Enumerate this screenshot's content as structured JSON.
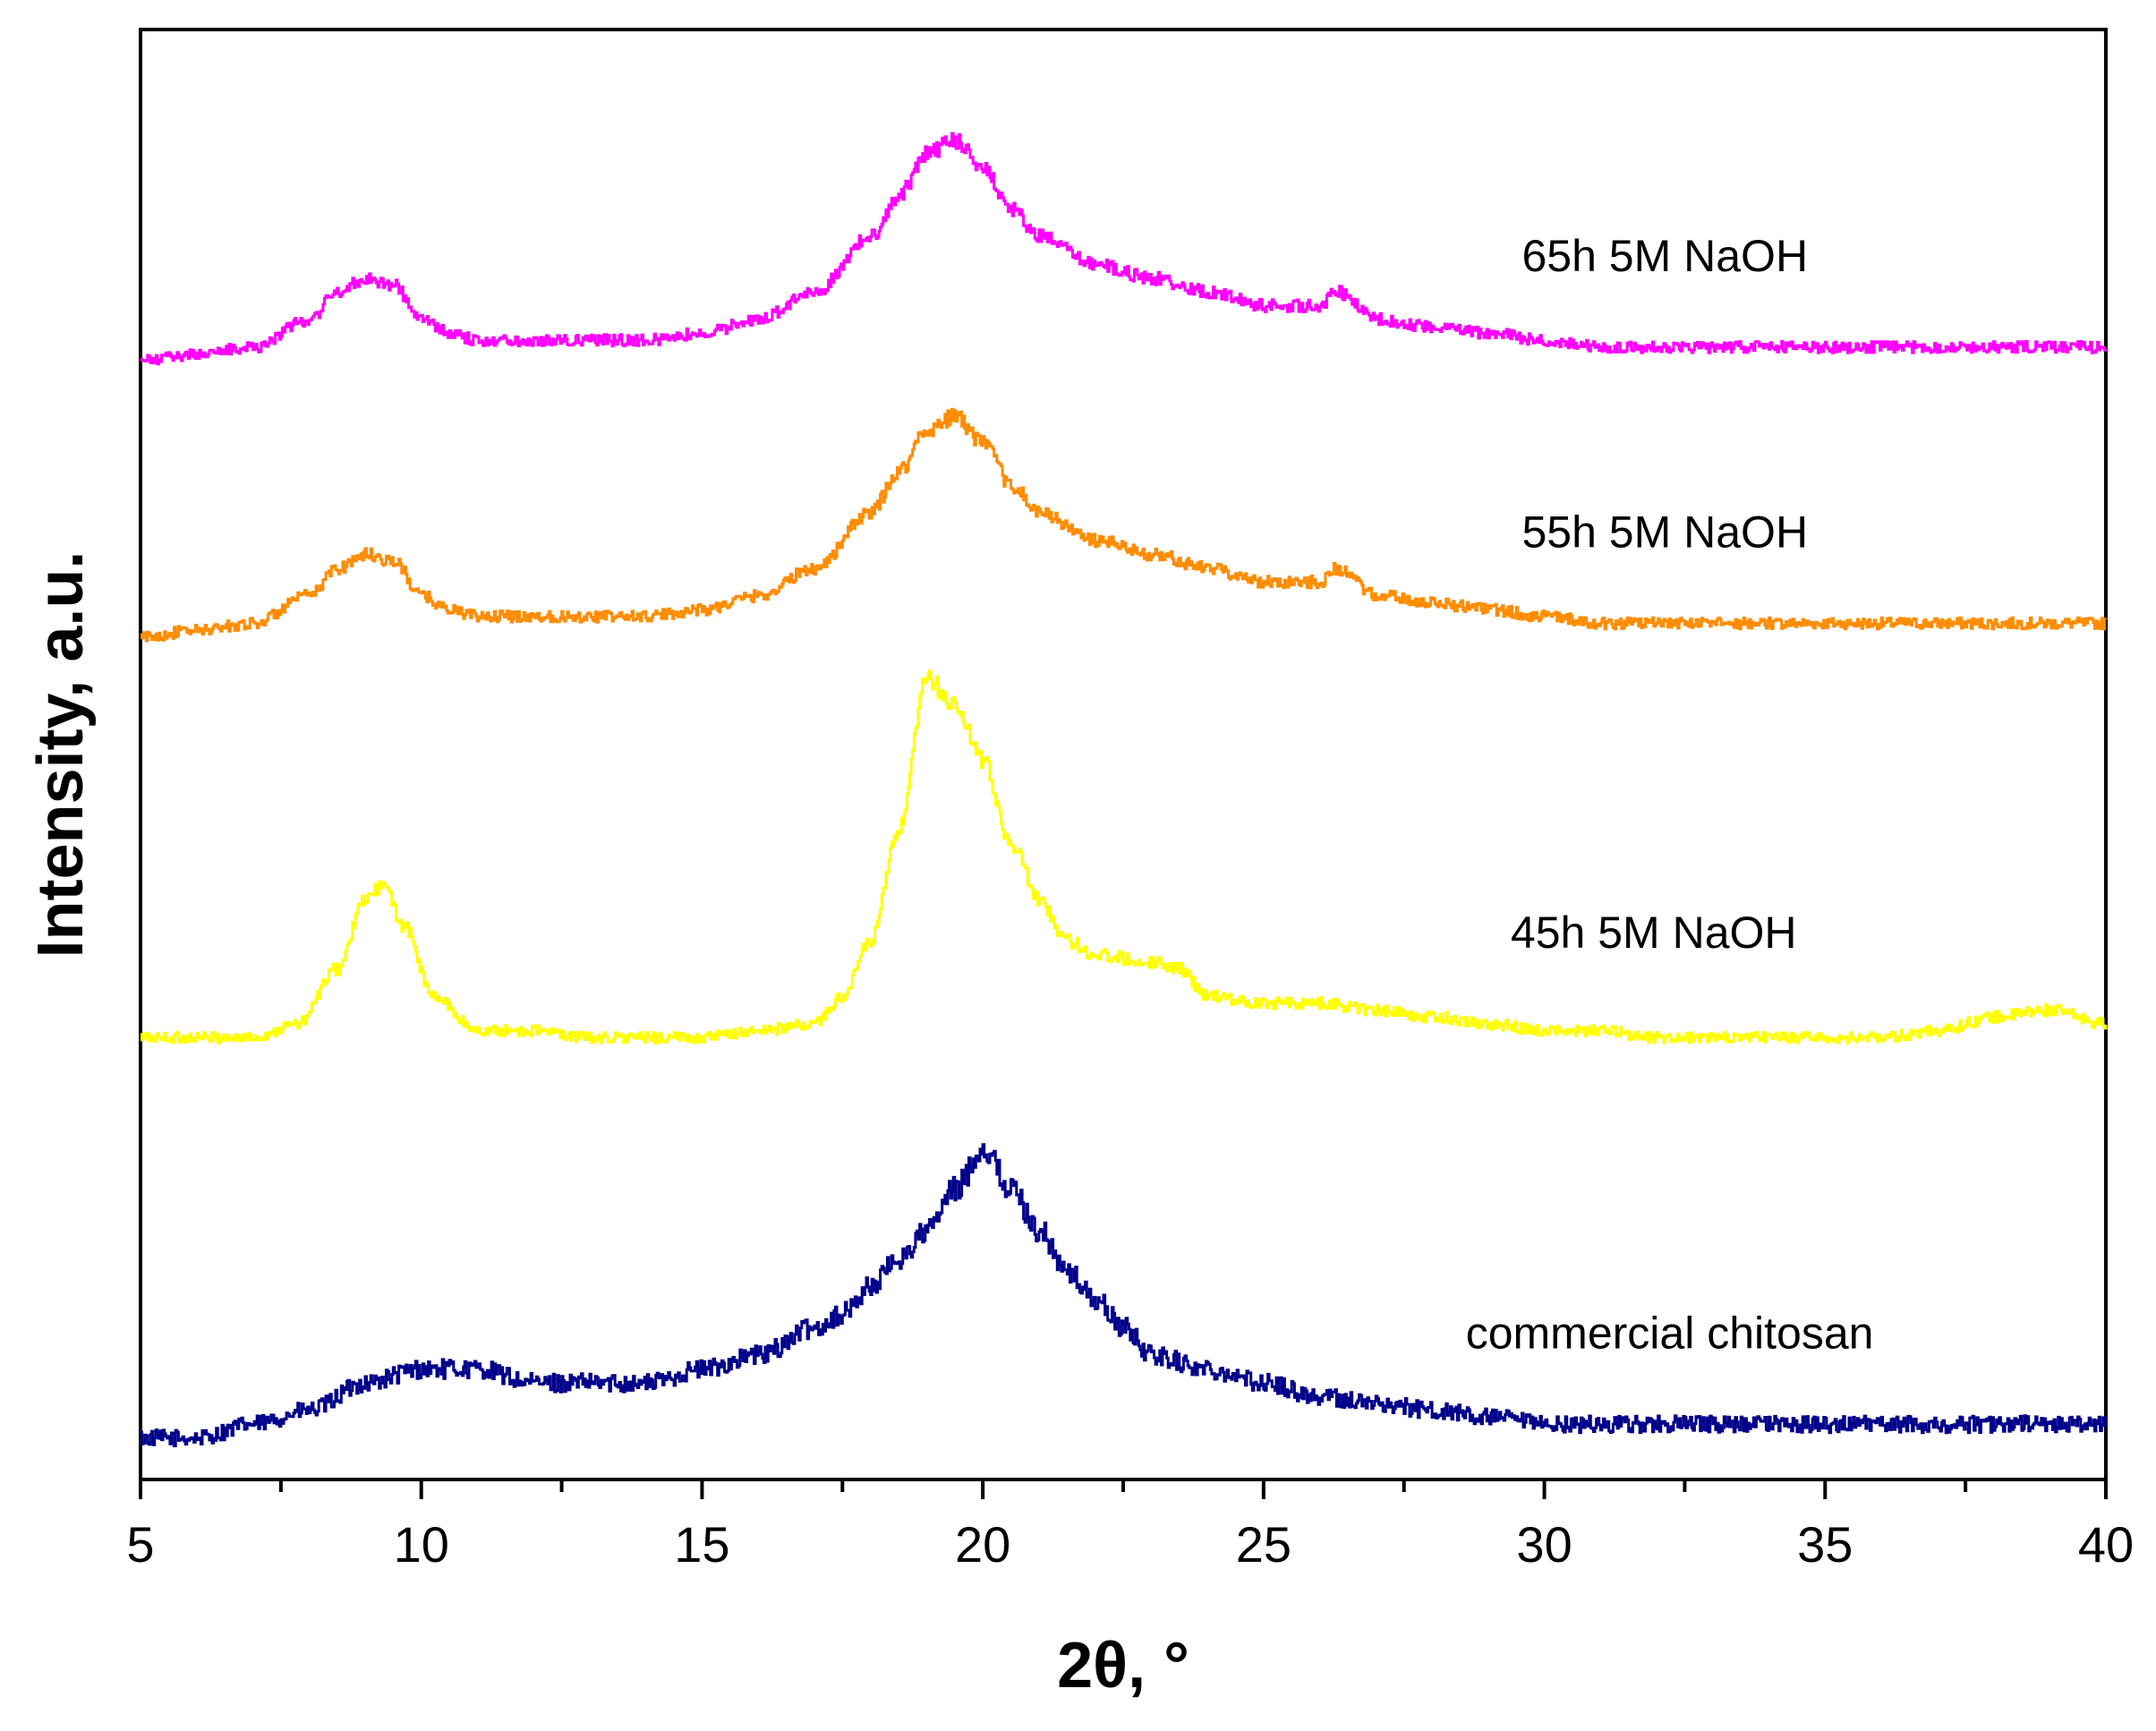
{
  "chart_data": {
    "type": "line",
    "title": "",
    "xlabel": "2θ, °",
    "ylabel": "Intensity, a.u.",
    "xlim": [
      5,
      40
    ],
    "ylim": [
      0,
      105
    ],
    "x_ticks": [
      "5",
      "10",
      "15",
      "20",
      "25",
      "30",
      "35",
      "40"
    ],
    "x_tick_values": [
      5,
      10,
      15,
      20,
      25,
      30,
      35,
      40
    ],
    "grid": false,
    "series": [
      {
        "name": "commercial chitosan",
        "color": "#00008b",
        "x": [
          5,
          6,
          7,
          8,
          9,
          10,
          11,
          12,
          13,
          14,
          15,
          16,
          17,
          17.5,
          18,
          18.5,
          19,
          19.5,
          20,
          20.5,
          21,
          21.5,
          22,
          22.5,
          23,
          24,
          25,
          26,
          27,
          28,
          29,
          30,
          31,
          32,
          33,
          34,
          35,
          36,
          37,
          38,
          39,
          40
        ],
        "values": [
          3,
          3,
          4,
          5,
          7,
          8,
          8,
          7,
          7,
          7,
          8,
          9,
          11,
          12,
          14,
          16,
          18,
          21,
          24,
          21,
          18,
          15,
          13,
          11,
          9,
          8,
          7,
          6,
          5.5,
          5,
          4.5,
          4,
          4,
          4,
          4,
          4,
          4,
          4,
          4,
          4,
          4,
          4
        ],
        "noise": 0.6
      },
      {
        "name": "45h 5M NaOH",
        "color": "#ffff00",
        "x": [
          5,
          6,
          7,
          7.8,
          8.5,
          9,
          9.3,
          9.7,
          10.2,
          11,
          12,
          13,
          14,
          15,
          16,
          17,
          17.5,
          18,
          18.5,
          19,
          19.5,
          20,
          20.5,
          21,
          21.5,
          22,
          23,
          23.5,
          24,
          25,
          26,
          27,
          28,
          29,
          30,
          31,
          32,
          33,
          34,
          35,
          36,
          37,
          38,
          39,
          40
        ],
        "values": [
          32,
          32,
          32,
          33,
          37,
          42,
          43,
          40,
          35,
          32.5,
          32.5,
          32,
          32,
          32,
          32.5,
          33,
          35,
          39,
          47,
          58,
          56,
          52,
          46,
          42,
          39,
          38,
          37.5,
          37,
          35,
          34.5,
          34.5,
          34,
          33.5,
          33,
          32.5,
          32.5,
          32,
          32,
          32,
          32,
          32,
          32.5,
          33.5,
          34,
          33
        ],
        "noise": 0.4
      },
      {
        "name": "55h 5M NaOH",
        "color": "#ff8c00",
        "x": [
          5,
          6,
          7,
          8,
          8.5,
          9,
          9.5,
          10,
          10.5,
          11,
          12,
          13,
          14,
          15,
          16,
          17,
          18,
          18.5,
          19,
          19.5,
          20,
          20.5,
          21,
          22,
          23,
          24,
          25,
          26,
          26.3,
          27,
          28,
          29,
          30,
          31,
          32,
          33,
          34,
          35,
          36,
          37,
          38,
          39,
          40
        ],
        "values": [
          61,
          61.5,
          62,
          64,
          66,
          67,
          66.5,
          64,
          63,
          62.5,
          62.5,
          62.5,
          62.5,
          63,
          64,
          66,
          70,
          73,
          76,
          77,
          75,
          72,
          70,
          68,
          67,
          66,
          65,
          65,
          66,
          64,
          63.5,
          63,
          62.5,
          62,
          62,
          62,
          62,
          62,
          62,
          62,
          62,
          62,
          62
        ],
        "noise": 0.4
      },
      {
        "name": "65h 5M NaOH",
        "color": "#ff00ff",
        "x": [
          5,
          6,
          7,
          8,
          8.5,
          9,
          9.5,
          10,
          10.5,
          11,
          12,
          13,
          14,
          15,
          16,
          17,
          18,
          18.5,
          19,
          19.5,
          20,
          20.5,
          21,
          22,
          23,
          24,
          25,
          26,
          26.3,
          27,
          28,
          29,
          30,
          31,
          32,
          33,
          34,
          35,
          36,
          37,
          38,
          39,
          40
        ],
        "values": [
          81,
          81.5,
          82,
          84,
          86,
          87,
          86.5,
          84,
          83,
          82.5,
          82.5,
          82.5,
          82.5,
          83,
          84,
          86,
          90,
          93,
          96,
          97,
          95,
          92,
          90,
          88,
          87,
          86,
          85,
          85,
          86,
          84,
          83.5,
          83,
          82.5,
          82,
          82,
          82,
          82,
          82,
          82,
          82,
          82,
          82,
          82
        ],
        "noise": 0.4
      }
    ],
    "annotations": [
      {
        "text": "65h 5M NaOH",
        "x": 29.6,
        "y": 87.5
      },
      {
        "text": "55h 5M NaOH",
        "x": 29.6,
        "y": 67.5
      },
      {
        "text": "45h 5M NaOH",
        "x": 29.4,
        "y": 38.5
      },
      {
        "text": "commercial chitosan",
        "x": 28.6,
        "y": 9.5
      }
    ]
  }
}
